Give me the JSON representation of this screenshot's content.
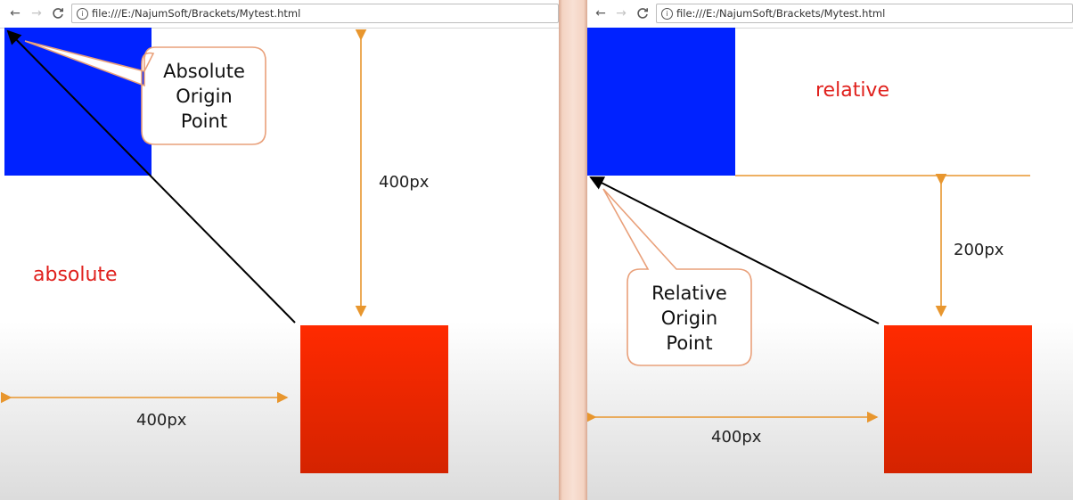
{
  "left_panel": {
    "url": "file:///E:/NajumSoft/Brackets/Mytest.html",
    "mode_label": "absolute",
    "callout_lines": [
      "Absolute",
      "Origin",
      "Point"
    ],
    "vertical_measure": "400px",
    "horizontal_measure": "400px"
  },
  "right_panel": {
    "url": "file:///E:/NajumSoft/Brackets/Mytest.html",
    "mode_label": "relative",
    "callout_lines": [
      "Relative",
      "Origin",
      "Point"
    ],
    "vertical_measure": "200px",
    "horizontal_measure": "400px"
  },
  "toolbar_icons": {
    "back": "←",
    "forward": "→",
    "reload": "C",
    "info": "i"
  },
  "colors": {
    "blue_box": "#0022ff",
    "red_box": "#ff2a00",
    "measure_line": "#e8962e",
    "mode_label": "#e0201c"
  }
}
